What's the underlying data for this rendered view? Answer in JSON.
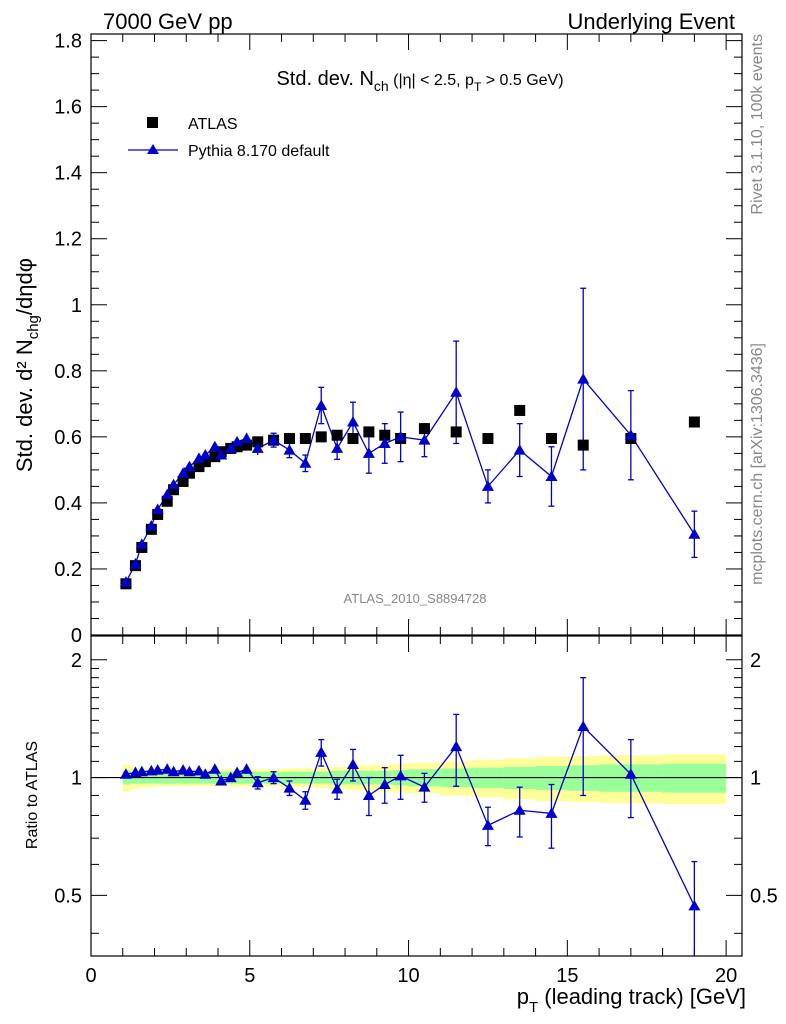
{
  "header": {
    "left": "7000 GeV pp",
    "right": "Underlying Event"
  },
  "side_text": {
    "rivet": "Rivet 3.1.10,  100k events",
    "mcplots": "mcplots.cern.ch [arXiv:1306.3436]"
  },
  "analysis_id": "ATLAS_2010_S8894728",
  "colors": {
    "mc": "#0000cc",
    "data": "#000000",
    "band_inner": "#99ff99",
    "band_outer": "#ffff99"
  },
  "chart_data": [
    {
      "type": "scatter",
      "title_parts": {
        "main": "Std. dev. N",
        "sub": "ch",
        "rest": " (|η| < 2.5, p",
        "sub2": "T",
        "rest2": " > 0.5 GeV)"
      },
      "ylabel": "Std. dev. d² N",
      "ylabel_sub": "chg",
      "ylabel_rest": "/dηdφ",
      "xlim": [
        0,
        20.5
      ],
      "ylim": [
        0,
        1.82
      ],
      "yticks": [
        0,
        0.2,
        0.4,
        0.6,
        0.8,
        1,
        1.2,
        1.4,
        1.6,
        1.8
      ],
      "ytick_labels": [
        "0",
        "0.2",
        "0.4",
        "0.6",
        "0.8",
        "1",
        "1.2",
        "1.4",
        "1.6",
        "1.8"
      ],
      "legend": {
        "position": "top-left",
        "entries": [
          "ATLAS",
          "Pythia 8.170 default"
        ]
      },
      "series": [
        {
          "name": "ATLAS",
          "marker": "square",
          "x": [
            1.1,
            1.4,
            1.6,
            1.9,
            2.1,
            2.4,
            2.6,
            2.9,
            3.1,
            3.4,
            3.6,
            3.9,
            4.1,
            4.4,
            4.6,
            4.9,
            5.25,
            5.75,
            6.25,
            6.75,
            7.25,
            7.75,
            8.25,
            8.75,
            9.25,
            9.75,
            10.5,
            11.5,
            12.5,
            13.5,
            14.5,
            15.5,
            17.0,
            19.0
          ],
          "y": [
            0.155,
            0.21,
            0.265,
            0.32,
            0.365,
            0.405,
            0.44,
            0.465,
            0.49,
            0.51,
            0.525,
            0.54,
            0.555,
            0.565,
            0.57,
            0.575,
            0.585,
            0.59,
            0.595,
            0.595,
            0.6,
            0.605,
            0.595,
            0.615,
            0.605,
            0.595,
            0.625,
            0.615,
            0.595,
            0.68,
            0.595,
            0.575,
            0.595,
            0.645
          ]
        },
        {
          "name": "Pythia 8.170 default",
          "marker": "triangle",
          "x": [
            1.1,
            1.4,
            1.6,
            1.9,
            2.1,
            2.4,
            2.6,
            2.9,
            3.1,
            3.4,
            3.6,
            3.9,
            4.1,
            4.4,
            4.6,
            4.9,
            5.25,
            5.75,
            6.25,
            6.75,
            7.25,
            7.75,
            8.25,
            8.75,
            9.25,
            9.75,
            10.5,
            11.5,
            12.5,
            13.5,
            14.5,
            15.5,
            17.0,
            19.0
          ],
          "y": [
            0.16,
            0.215,
            0.275,
            0.33,
            0.38,
            0.425,
            0.455,
            0.49,
            0.51,
            0.535,
            0.545,
            0.57,
            0.545,
            0.565,
            0.585,
            0.595,
            0.565,
            0.59,
            0.56,
            0.52,
            0.695,
            0.565,
            0.645,
            0.55,
            0.58,
            0.6,
            0.59,
            0.735,
            0.45,
            0.56,
            0.48,
            0.775,
            0.605,
            0.305
          ],
          "yerr": [
            0.006,
            0.006,
            0.006,
            0.006,
            0.006,
            0.007,
            0.007,
            0.007,
            0.008,
            0.009,
            0.01,
            0.011,
            0.012,
            0.013,
            0.015,
            0.017,
            0.02,
            0.021,
            0.023,
            0.025,
            0.055,
            0.033,
            0.06,
            0.06,
            0.06,
            0.075,
            0.05,
            0.155,
            0.05,
            0.08,
            0.09,
            0.275,
            0.135,
            0.07
          ]
        }
      ]
    },
    {
      "type": "scatter",
      "ylabel": "Ratio to ATLAS",
      "xlabel": "(leading track) [GeV]",
      "xlabel_prefix": "p",
      "xlabel_sub": "T",
      "xlim": [
        0,
        20.5
      ],
      "ylim": [
        0.35,
        2.3
      ],
      "xticks": [
        0,
        5,
        10,
        15,
        20
      ],
      "xtick_labels": [
        "0",
        "5",
        "10",
        "15",
        "20"
      ],
      "yticks": [
        0.5,
        1,
        2
      ],
      "ytick_labels": [
        "0.5",
        "1",
        "2"
      ],
      "bands": {
        "x_edges": [
          1,
          1.25,
          1.5,
          1.75,
          2.0,
          2.25,
          2.5,
          2.75,
          3.0,
          3.25,
          3.5,
          3.75,
          4.0,
          4.25,
          4.5,
          4.75,
          5.0,
          5.5,
          6.0,
          6.5,
          7.0,
          7.5,
          8.0,
          8.5,
          9.0,
          9.5,
          10.0,
          11.0,
          12.0,
          13.0,
          14.0,
          15.0,
          16.0,
          18.0,
          20.0
        ],
        "inner": [
          0.04,
          0.035,
          0.035,
          0.035,
          0.035,
          0.035,
          0.035,
          0.035,
          0.035,
          0.035,
          0.035,
          0.035,
          0.035,
          0.035,
          0.035,
          0.035,
          0.035,
          0.035,
          0.035,
          0.035,
          0.035,
          0.04,
          0.04,
          0.04,
          0.04,
          0.045,
          0.05,
          0.055,
          0.06,
          0.065,
          0.07,
          0.075,
          0.08,
          0.085
        ],
        "outer": [
          0.08,
          0.065,
          0.06,
          0.055,
          0.05,
          0.05,
          0.05,
          0.05,
          0.05,
          0.05,
          0.05,
          0.05,
          0.05,
          0.05,
          0.05,
          0.05,
          0.05,
          0.05,
          0.055,
          0.055,
          0.06,
          0.065,
          0.07,
          0.075,
          0.08,
          0.085,
          0.09,
          0.1,
          0.11,
          0.12,
          0.13,
          0.135,
          0.14,
          0.145
        ]
      },
      "series": [
        {
          "name": "Pythia 8.170 default",
          "x": [
            1.1,
            1.4,
            1.6,
            1.9,
            2.1,
            2.4,
            2.6,
            2.9,
            3.1,
            3.4,
            3.6,
            3.9,
            4.1,
            4.4,
            4.6,
            4.9,
            5.25,
            5.75,
            6.25,
            6.75,
            7.25,
            7.75,
            8.25,
            8.75,
            9.25,
            9.75,
            10.5,
            11.5,
            12.5,
            13.5,
            14.5,
            15.5,
            17.0,
            19.0
          ],
          "y": [
            1.02,
            1.03,
            1.035,
            1.04,
            1.045,
            1.05,
            1.035,
            1.045,
            1.035,
            1.04,
            1.02,
            1.05,
            0.98,
            1.0,
            1.03,
            1.05,
            0.97,
            1.0,
            0.94,
            0.875,
            1.16,
            0.935,
            1.08,
            0.9,
            0.96,
            1.01,
            0.945,
            1.2,
            0.755,
            0.825,
            0.81,
            1.35,
            1.02,
            0.47
          ],
          "yerr": [
            0.01,
            0.01,
            0.01,
            0.01,
            0.01,
            0.012,
            0.012,
            0.014,
            0.015,
            0.016,
            0.018,
            0.02,
            0.022,
            0.024,
            0.026,
            0.028,
            0.035,
            0.035,
            0.04,
            0.045,
            0.09,
            0.055,
            0.1,
            0.1,
            0.1,
            0.13,
            0.08,
            0.25,
            0.085,
            0.12,
            0.15,
            0.45,
            0.23,
            0.14
          ]
        }
      ]
    }
  ]
}
